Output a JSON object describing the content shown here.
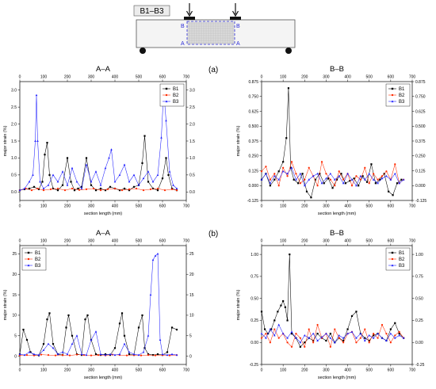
{
  "figure": {
    "beam_label": "B1–B3",
    "section_marker_b": "B",
    "section_marker_a": "A",
    "panel_a": "(a)",
    "panel_b": "(b)"
  },
  "colors": {
    "B1": "#000000",
    "B2": "#ff2a00",
    "B3": "#1f1fff"
  },
  "chart_data": [
    {
      "type": "line",
      "panel": "(a)",
      "title": "A–A",
      "xlabel": "section length (mm)",
      "ylabel": "major strain (%)",
      "xlim": [
        0,
        700
      ],
      "ylim": [
        -0.25,
        3.25
      ],
      "xticks": [
        0,
        100,
        200,
        300,
        400,
        500,
        600,
        700
      ],
      "yticks": [
        0.0,
        0.5,
        1.0,
        1.5,
        2.0,
        2.5,
        3.0
      ],
      "ytick_labels": [
        "0.0",
        "0.5",
        "1.0",
        "1.5",
        "2.0",
        "2.5",
        "3.0"
      ],
      "legend": "top-right",
      "series": [
        {
          "name": "B1",
          "marker": "square",
          "x": [
            0,
            20,
            40,
            60,
            80,
            95,
            105,
            115,
            125,
            140,
            160,
            180,
            200,
            215,
            230,
            245,
            260,
            280,
            300,
            320,
            340,
            360,
            380,
            400,
            420,
            440,
            460,
            480,
            500,
            515,
            525,
            540,
            560,
            580,
            600,
            615,
            625,
            640,
            660
          ],
          "y": [
            0.05,
            0.08,
            0.1,
            0.15,
            0.08,
            0.3,
            1.1,
            1.45,
            0.5,
            0.1,
            0.05,
            0.2,
            1.0,
            0.3,
            0.05,
            0.1,
            0.15,
            1.0,
            0.2,
            0.05,
            0.1,
            0.05,
            0.15,
            0.1,
            0.05,
            0.1,
            0.05,
            0.15,
            0.2,
            0.85,
            1.65,
            0.3,
            0.1,
            0.05,
            0.4,
            1.0,
            0.5,
            0.1,
            0.05
          ]
        },
        {
          "name": "B2",
          "marker": "circle",
          "x": [
            0,
            25,
            50,
            75,
            100,
            130,
            160,
            190,
            220,
            250,
            280,
            310,
            340,
            370,
            400,
            430,
            460,
            490,
            520,
            550,
            580,
            610,
            640,
            660
          ],
          "y": [
            0.05,
            0.1,
            0.05,
            0.1,
            0.05,
            0.08,
            0.1,
            0.05,
            0.1,
            0.06,
            0.08,
            0.1,
            0.05,
            0.08,
            0.1,
            0.05,
            0.08,
            0.1,
            0.05,
            0.08,
            0.1,
            0.05,
            0.08,
            0.05
          ]
        },
        {
          "name": "B3",
          "marker": "triangle",
          "x": [
            0,
            20,
            40,
            55,
            65,
            70,
            75,
            85,
            100,
            120,
            140,
            160,
            180,
            200,
            220,
            240,
            260,
            280,
            300,
            320,
            340,
            360,
            375,
            385,
            400,
            420,
            440,
            460,
            480,
            500,
            520,
            540,
            560,
            580,
            595,
            605,
            615,
            630,
            645,
            660
          ],
          "y": [
            0.05,
            0.1,
            0.3,
            0.5,
            1.5,
            2.85,
            1.5,
            0.3,
            0.1,
            0.2,
            0.5,
            0.3,
            0.6,
            0.2,
            0.7,
            0.3,
            0.1,
            0.8,
            0.3,
            0.6,
            0.2,
            0.7,
            1.0,
            1.25,
            0.3,
            0.5,
            0.8,
            0.3,
            0.5,
            0.2,
            0.4,
            0.6,
            0.3,
            0.5,
            1.6,
            2.98,
            2.1,
            0.6,
            0.2,
            0.1
          ]
        }
      ]
    },
    {
      "type": "line",
      "panel": "(a)",
      "title": "B–B",
      "xlabel": "section length (mm)",
      "ylabel": "major strain (%)",
      "xlim": [
        0,
        700
      ],
      "ylim": [
        -0.125,
        0.875
      ],
      "xticks": [
        0,
        100,
        200,
        300,
        400,
        500,
        600,
        700
      ],
      "yticks": [
        -0.125,
        0.0,
        0.125,
        0.25,
        0.375,
        0.5,
        0.625,
        0.75,
        0.875
      ],
      "ytick_labels": [
        "-0.125",
        "0.000",
        "0.125",
        "0.250",
        "0.375",
        "0.500",
        "0.625",
        "0.750",
        "0.875"
      ],
      "legend": "top-right",
      "series": [
        {
          "name": "B1",
          "marker": "square",
          "x": [
            0,
            20,
            40,
            60,
            80,
            100,
            115,
            125,
            135,
            150,
            170,
            190,
            210,
            230,
            250,
            270,
            290,
            310,
            330,
            350,
            370,
            390,
            410,
            430,
            450,
            470,
            490,
            510,
            530,
            550,
            570,
            590,
            610,
            630,
            650
          ],
          "y": [
            0.05,
            0.1,
            0.0,
            0.05,
            0.12,
            0.2,
            0.4,
            0.82,
            0.15,
            0.05,
            0.02,
            0.1,
            -0.05,
            -0.1,
            0.05,
            0.1,
            0.02,
            0.06,
            -0.02,
            0.05,
            0.1,
            0.02,
            0.04,
            0.06,
            0.0,
            0.08,
            0.03,
            0.18,
            0.02,
            0.05,
            0.1,
            -0.05,
            -0.08,
            0.02,
            0.05
          ]
        },
        {
          "name": "B2",
          "marker": "circle",
          "x": [
            0,
            20,
            40,
            60,
            80,
            100,
            120,
            140,
            160,
            180,
            200,
            220,
            240,
            260,
            280,
            300,
            320,
            340,
            360,
            380,
            400,
            420,
            440,
            460,
            480,
            500,
            520,
            540,
            560,
            580,
            600,
            620,
            640,
            660
          ],
          "y": [
            0.12,
            0.16,
            0.05,
            0.1,
            0.0,
            0.15,
            0.08,
            0.2,
            0.1,
            0.02,
            0.05,
            0.15,
            0.08,
            0.0,
            0.2,
            0.1,
            0.05,
            0.0,
            0.12,
            0.05,
            0.1,
            0.0,
            0.08,
            0.05,
            0.15,
            0.02,
            0.1,
            0.05,
            0.08,
            0.12,
            0.05,
            0.18,
            0.02,
            0.05
          ]
        },
        {
          "name": "B3",
          "marker": "triangle",
          "x": [
            0,
            20,
            40,
            60,
            80,
            100,
            120,
            140,
            160,
            180,
            200,
            220,
            240,
            260,
            280,
            300,
            320,
            340,
            360,
            380,
            400,
            420,
            440,
            460,
            480,
            500,
            520,
            540,
            560,
            580,
            600,
            620,
            640,
            660
          ],
          "y": [
            0.05,
            0.1,
            0.02,
            0.08,
            0.05,
            0.12,
            0.1,
            0.15,
            0.05,
            0.1,
            0.0,
            0.05,
            0.08,
            0.1,
            0.02,
            0.06,
            0.1,
            0.05,
            0.08,
            0.02,
            0.1,
            0.05,
            0.0,
            0.08,
            0.05,
            0.1,
            0.05,
            0.02,
            0.06,
            0.08,
            0.05,
            0.1,
            0.02,
            0.05
          ]
        }
      ]
    },
    {
      "type": "line",
      "panel": "(b)",
      "title": "A–A",
      "xlabel": "section length (mm)",
      "ylabel": "major strain (%)",
      "xlim": [
        0,
        700
      ],
      "ylim": [
        -2,
        27
      ],
      "xticks": [
        0,
        100,
        200,
        300,
        400,
        500,
        600,
        700
      ],
      "yticks": [
        0,
        5,
        10,
        15,
        20,
        25
      ],
      "ytick_labels": [
        "0",
        "5",
        "10",
        "15",
        "20",
        "25"
      ],
      "legend": "top-left",
      "series": [
        {
          "name": "B1",
          "marker": "square",
          "x": [
            0,
            15,
            30,
            45,
            60,
            80,
            100,
            115,
            125,
            140,
            160,
            180,
            195,
            205,
            220,
            240,
            260,
            275,
            285,
            300,
            320,
            340,
            360,
            380,
            400,
            420,
            430,
            440,
            460,
            480,
            500,
            515,
            525,
            540,
            560,
            580,
            600,
            620,
            640,
            660
          ],
          "y": [
            0.5,
            6.5,
            4.0,
            1.0,
            0.3,
            0.2,
            3.0,
            9.0,
            10.5,
            3.0,
            0.5,
            0.3,
            7.0,
            10.0,
            5.0,
            0.5,
            0.3,
            9.0,
            10.0,
            4.0,
            0.5,
            0.3,
            0.5,
            0.3,
            2.0,
            8.0,
            10.5,
            5.0,
            0.5,
            0.3,
            7.0,
            10.0,
            2.0,
            0.5,
            0.3,
            0.5,
            0.3,
            1.0,
            7.0,
            6.5
          ]
        },
        {
          "name": "B2",
          "marker": "circle",
          "x": [
            0,
            30,
            60,
            90,
            120,
            150,
            180,
            210,
            240,
            270,
            300,
            330,
            360,
            390,
            420,
            450,
            480,
            510,
            540,
            570,
            600,
            630,
            660
          ],
          "y": [
            0.2,
            0.3,
            0.2,
            0.4,
            0.3,
            0.2,
            0.3,
            0.2,
            0.4,
            0.3,
            0.2,
            0.3,
            0.2,
            0.4,
            0.3,
            0.2,
            0.3,
            0.2,
            0.3,
            0.2,
            0.3,
            0.2,
            0.3
          ]
        },
        {
          "name": "B3",
          "marker": "triangle",
          "x": [
            0,
            20,
            40,
            60,
            80,
            100,
            120,
            140,
            160,
            180,
            200,
            220,
            240,
            260,
            280,
            300,
            320,
            340,
            360,
            380,
            400,
            420,
            440,
            460,
            480,
            500,
            520,
            540,
            550,
            560,
            570,
            580,
            590,
            600,
            620,
            640,
            660
          ],
          "y": [
            0.5,
            0.3,
            1.0,
            0.5,
            0.3,
            1.5,
            3.0,
            2.0,
            0.5,
            1.0,
            0.5,
            3.0,
            5.0,
            0.5,
            0.3,
            4.0,
            6.0,
            0.5,
            0.3,
            0.5,
            0.3,
            0.5,
            3.0,
            1.0,
            0.5,
            0.3,
            1.0,
            5.0,
            15.0,
            23.5,
            24.5,
            25.0,
            4.0,
            0.5,
            0.3,
            0.5,
            0.3
          ]
        }
      ]
    },
    {
      "type": "line",
      "panel": "(b)",
      "title": "B–B",
      "xlabel": "section length (mm)",
      "ylabel": "major strain (%)",
      "xlim": [
        0,
        700
      ],
      "ylim": [
        -0.25,
        1.1
      ],
      "xticks": [
        0,
        100,
        200,
        300,
        400,
        500,
        600,
        700
      ],
      "yticks": [
        -0.25,
        0.0,
        0.25,
        0.5,
        0.75,
        1.0
      ],
      "ytick_labels": [
        "-0.25",
        "0.00",
        "0.25",
        "0.50",
        "0.75",
        "1.00"
      ],
      "legend": "top-right",
      "series": [
        {
          "name": "B1",
          "marker": "square",
          "x": [
            0,
            15,
            30,
            45,
            60,
            75,
            90,
            100,
            110,
            120,
            130,
            140,
            160,
            180,
            200,
            220,
            240,
            260,
            280,
            300,
            320,
            340,
            360,
            380,
            400,
            420,
            440,
            460,
            480,
            500,
            520,
            540,
            560,
            580,
            600,
            620,
            640,
            660
          ],
          "y": [
            0.35,
            0.15,
            0.1,
            0.15,
            0.25,
            0.35,
            0.42,
            0.47,
            0.4,
            0.25,
            1.0,
            0.1,
            0.05,
            -0.05,
            0.0,
            0.05,
            0.02,
            0.1,
            0.05,
            0.02,
            0.1,
            0.0,
            0.05,
            0.02,
            0.15,
            0.3,
            0.35,
            0.1,
            0.05,
            0.02,
            0.08,
            0.1,
            0.05,
            0.02,
            0.15,
            0.22,
            0.1,
            0.05
          ]
        },
        {
          "name": "B2",
          "marker": "circle",
          "x": [
            0,
            20,
            40,
            60,
            80,
            100,
            120,
            140,
            160,
            180,
            200,
            220,
            240,
            260,
            280,
            300,
            320,
            340,
            360,
            380,
            400,
            420,
            440,
            460,
            480,
            500,
            520,
            540,
            560,
            580,
            600,
            620,
            640,
            660
          ],
          "y": [
            0.05,
            0.1,
            0.0,
            0.15,
            0.05,
            0.1,
            0.0,
            -0.05,
            0.1,
            0.05,
            -0.05,
            0.15,
            0.0,
            0.2,
            0.05,
            0.1,
            -0.05,
            0.15,
            0.05,
            0.0,
            0.1,
            0.12,
            0.0,
            0.05,
            0.15,
            0.0,
            0.1,
            0.05,
            0.2,
            0.1,
            0.0,
            0.08,
            0.12,
            0.05
          ]
        },
        {
          "name": "B3",
          "marker": "triangle",
          "x": [
            0,
            20,
            40,
            60,
            80,
            100,
            120,
            140,
            160,
            180,
            200,
            220,
            240,
            260,
            280,
            300,
            320,
            340,
            360,
            380,
            400,
            420,
            440,
            460,
            480,
            500,
            520,
            540,
            560,
            580,
            600,
            620,
            640,
            660
          ],
          "y": [
            0.1,
            0.05,
            0.15,
            0.08,
            0.2,
            0.1,
            0.05,
            0.12,
            0.05,
            0.0,
            0.08,
            0.05,
            0.1,
            0.02,
            0.06,
            0.1,
            0.05,
            0.0,
            0.08,
            0.05,
            0.1,
            0.12,
            0.05,
            0.1,
            0.02,
            0.08,
            0.05,
            0.1,
            0.05,
            0.02,
            0.1,
            0.05,
            0.08,
            0.05
          ]
        }
      ]
    }
  ]
}
